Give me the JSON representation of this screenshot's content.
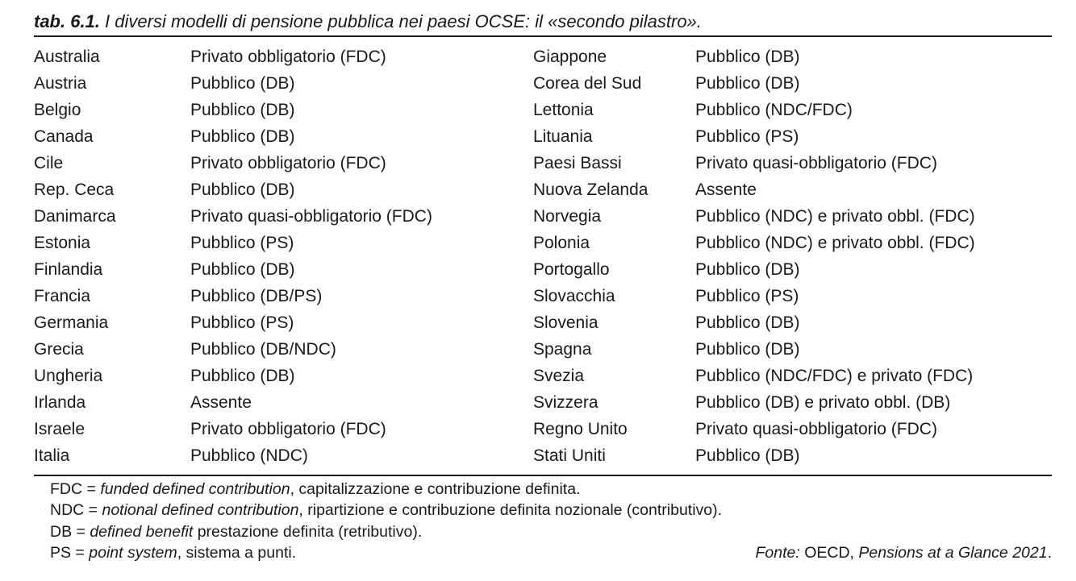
{
  "caption": {
    "number": "tab. 6.1.",
    "title": "I diversi modelli di pensione pubblica nei paesi OCSE: il «secondo pilastro»."
  },
  "rows": [
    {
      "left_country": "Australia",
      "left_model": "Privato obbligatorio (FDC)",
      "right_country": "Giappone",
      "right_model": "Pubblico (DB)"
    },
    {
      "left_country": "Austria",
      "left_model": "Pubblico (DB)",
      "right_country": "Corea del Sud",
      "right_model": "Pubblico (DB)"
    },
    {
      "left_country": "Belgio",
      "left_model": "Pubblico (DB)",
      "right_country": "Lettonia",
      "right_model": "Pubblico (NDC/FDC)"
    },
    {
      "left_country": "Canada",
      "left_model": "Pubblico (DB)",
      "right_country": "Lituania",
      "right_model": "Pubblico (PS)"
    },
    {
      "left_country": "Cile",
      "left_model": "Privato obbligatorio (FDC)",
      "right_country": "Paesi Bassi",
      "right_model": "Privato quasi-obbligatorio (FDC)"
    },
    {
      "left_country": "Rep. Ceca",
      "left_model": "Pubblico (DB)",
      "right_country": "Nuova Zelanda",
      "right_model": "Assente"
    },
    {
      "left_country": "Danimarca",
      "left_model": "Privato quasi-obbligatorio (FDC)",
      "right_country": "Norvegia",
      "right_model": "Pubblico (NDC) e privato obbl. (FDC)"
    },
    {
      "left_country": "Estonia",
      "left_model": "Pubblico (PS)",
      "right_country": "Polonia",
      "right_model": "Pubblico (NDC) e privato obbl. (FDC)"
    },
    {
      "left_country": "Finlandia",
      "left_model": "Pubblico (DB)",
      "right_country": "Portogallo",
      "right_model": "Pubblico (DB)"
    },
    {
      "left_country": "Francia",
      "left_model": "Pubblico (DB/PS)",
      "right_country": "Slovacchia",
      "right_model": "Pubblico (PS)"
    },
    {
      "left_country": "Germania",
      "left_model": "Pubblico (PS)",
      "right_country": "Slovenia",
      "right_model": "Pubblico (DB)"
    },
    {
      "left_country": "Grecia",
      "left_model": "Pubblico (DB/NDC)",
      "right_country": "Spagna",
      "right_model": "Pubblico (DB)"
    },
    {
      "left_country": "Ungheria",
      "left_model": "Pubblico (DB)",
      "right_country": "Svezia",
      "right_model": "Pubblico (NDC/FDC) e privato (FDC)"
    },
    {
      "left_country": "Irlanda",
      "left_model": "Assente",
      "right_country": "Svizzera",
      "right_model": "Pubblico (DB) e privato obbl. (DB)"
    },
    {
      "left_country": "Israele",
      "left_model": "Privato obbligatorio (FDC)",
      "right_country": "Regno Unito",
      "right_model": "Privato quasi-obbligatorio (FDC)"
    },
    {
      "left_country": "Italia",
      "left_model": "Pubblico (NDC)",
      "right_country": "Stati Uniti",
      "right_model": "Pubblico (DB)"
    }
  ],
  "notes": [
    {
      "abbr": "FDC =",
      "term": "funded defined contribution",
      "desc": ", capitalizzazione e contribuzione definita."
    },
    {
      "abbr": "NDC =",
      "term": "notional defined contribution",
      "desc": ", ripartizione e contribuzione definita nozionale (contributivo)."
    },
    {
      "abbr": "DB =",
      "term": "defined benefit",
      "desc": " prestazione definita (retributivo)."
    },
    {
      "abbr": "PS =",
      "term": "point system",
      "desc": ", sistema a punti."
    }
  ],
  "source": {
    "label": "Fonte:",
    "org": "OECD,",
    "title": "Pensions at a Glance 2021",
    "end": "."
  }
}
